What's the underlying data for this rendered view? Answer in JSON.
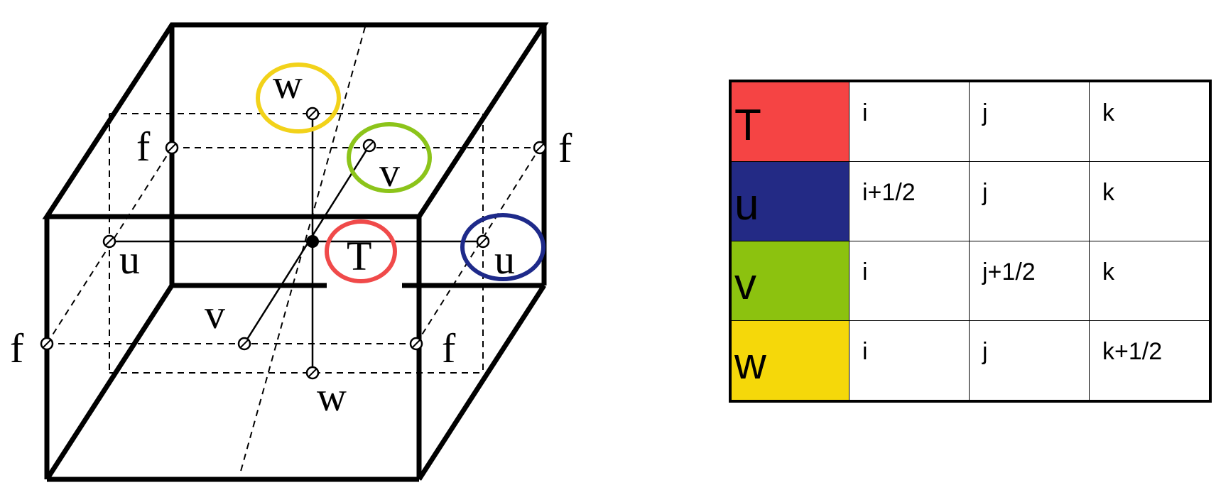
{
  "diagram": {
    "labels": {
      "f_top_left": "f",
      "f_top_right": "f",
      "f_bottom_left": "f",
      "f_bottom_right": "f",
      "u_left": "u",
      "u_right": "u",
      "v_top": "v",
      "v_bottom": "v",
      "w_top": "w",
      "w_bottom": "w",
      "t_center": "T"
    },
    "colors": {
      "T": "#f04a4a",
      "u": "#1e2a8a",
      "v": "#8cc41a",
      "w": "#f2d21a"
    }
  },
  "table": {
    "rows": [
      {
        "var": "T",
        "i": "i",
        "j": "j",
        "k": "k",
        "color": "#f54444"
      },
      {
        "var": "u",
        "i": "i+1/2",
        "j": "j",
        "k": "k",
        "color": "#232a85"
      },
      {
        "var": "v",
        "i": "i",
        "j": "j+1/2",
        "k": "k",
        "color": "#8cc20f"
      },
      {
        "var": "w",
        "i": "i",
        "j": "j",
        "k": "k+1/2",
        "color": "#f5d80a"
      }
    ]
  }
}
